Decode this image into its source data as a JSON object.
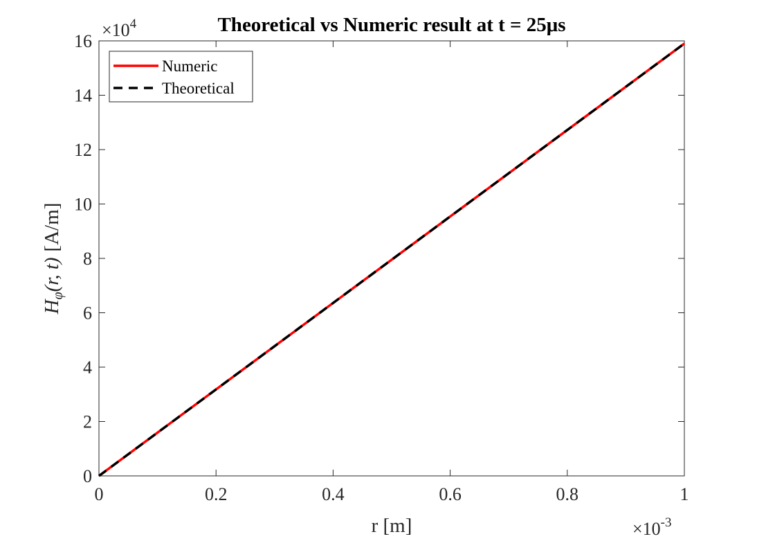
{
  "chart_data": {
    "type": "line",
    "title": "Theoretical vs Numeric result at t = 25μs",
    "xlabel": "r [m]",
    "ylabel": {
      "symbol": "H",
      "subscript": "φ",
      "args": "(r, t)",
      "unit": "[A/m]"
    },
    "x_multiplier": "×10",
    "x_multiplier_exp": "-3",
    "y_multiplier": "×10",
    "y_multiplier_exp": "4",
    "xlim": [
      0,
      1
    ],
    "ylim": [
      0,
      16
    ],
    "x_ticks": [
      0,
      0.2,
      0.4,
      0.6,
      0.8,
      1
    ],
    "y_ticks": [
      0,
      2,
      4,
      6,
      8,
      10,
      12,
      14,
      16
    ],
    "grid": false,
    "legend_position": "top-left",
    "series": [
      {
        "name": "Numeric",
        "color": "#ff0000",
        "style": "solid",
        "x": [
          0,
          1
        ],
        "y": [
          0,
          15.9
        ]
      },
      {
        "name": "Theoretical",
        "color": "#000000",
        "style": "dashed",
        "x": [
          0,
          1
        ],
        "y": [
          0,
          15.9
        ]
      }
    ]
  }
}
